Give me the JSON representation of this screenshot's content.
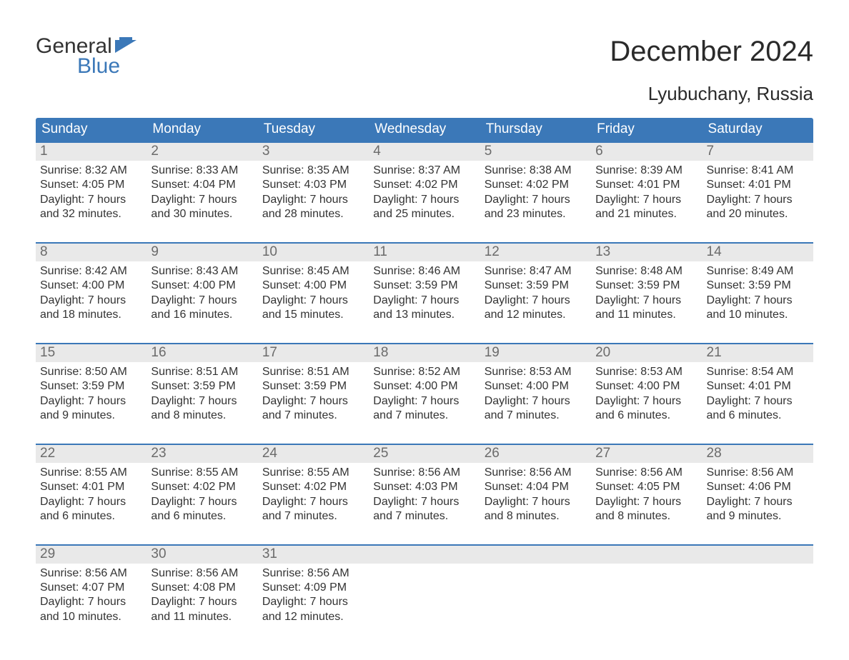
{
  "brand": {
    "word1": "General",
    "word2": "Blue",
    "flag_color": "#3b78b8",
    "text_color_dark": "#333333"
  },
  "title": "December 2024",
  "subtitle": "Lyubuchany, Russia",
  "colors": {
    "header_bg": "#3b78b8",
    "header_text": "#ffffff",
    "daynum_bg": "#e9e9e9",
    "daynum_text": "#6b6b6b",
    "body_text": "#333333",
    "week_divider": "#3b78b8",
    "page_bg": "#ffffff"
  },
  "days_of_week": [
    "Sunday",
    "Monday",
    "Tuesday",
    "Wednesday",
    "Thursday",
    "Friday",
    "Saturday"
  ],
  "weeks": [
    [
      {
        "n": "1",
        "sunrise": "Sunrise: 8:32 AM",
        "sunset": "Sunset: 4:05 PM",
        "d1": "Daylight: 7 hours",
        "d2": "and 32 minutes."
      },
      {
        "n": "2",
        "sunrise": "Sunrise: 8:33 AM",
        "sunset": "Sunset: 4:04 PM",
        "d1": "Daylight: 7 hours",
        "d2": "and 30 minutes."
      },
      {
        "n": "3",
        "sunrise": "Sunrise: 8:35 AM",
        "sunset": "Sunset: 4:03 PM",
        "d1": "Daylight: 7 hours",
        "d2": "and 28 minutes."
      },
      {
        "n": "4",
        "sunrise": "Sunrise: 8:37 AM",
        "sunset": "Sunset: 4:02 PM",
        "d1": "Daylight: 7 hours",
        "d2": "and 25 minutes."
      },
      {
        "n": "5",
        "sunrise": "Sunrise: 8:38 AM",
        "sunset": "Sunset: 4:02 PM",
        "d1": "Daylight: 7 hours",
        "d2": "and 23 minutes."
      },
      {
        "n": "6",
        "sunrise": "Sunrise: 8:39 AM",
        "sunset": "Sunset: 4:01 PM",
        "d1": "Daylight: 7 hours",
        "d2": "and 21 minutes."
      },
      {
        "n": "7",
        "sunrise": "Sunrise: 8:41 AM",
        "sunset": "Sunset: 4:01 PM",
        "d1": "Daylight: 7 hours",
        "d2": "and 20 minutes."
      }
    ],
    [
      {
        "n": "8",
        "sunrise": "Sunrise: 8:42 AM",
        "sunset": "Sunset: 4:00 PM",
        "d1": "Daylight: 7 hours",
        "d2": "and 18 minutes."
      },
      {
        "n": "9",
        "sunrise": "Sunrise: 8:43 AM",
        "sunset": "Sunset: 4:00 PM",
        "d1": "Daylight: 7 hours",
        "d2": "and 16 minutes."
      },
      {
        "n": "10",
        "sunrise": "Sunrise: 8:45 AM",
        "sunset": "Sunset: 4:00 PM",
        "d1": "Daylight: 7 hours",
        "d2": "and 15 minutes."
      },
      {
        "n": "11",
        "sunrise": "Sunrise: 8:46 AM",
        "sunset": "Sunset: 3:59 PM",
        "d1": "Daylight: 7 hours",
        "d2": "and 13 minutes."
      },
      {
        "n": "12",
        "sunrise": "Sunrise: 8:47 AM",
        "sunset": "Sunset: 3:59 PM",
        "d1": "Daylight: 7 hours",
        "d2": "and 12 minutes."
      },
      {
        "n": "13",
        "sunrise": "Sunrise: 8:48 AM",
        "sunset": "Sunset: 3:59 PM",
        "d1": "Daylight: 7 hours",
        "d2": "and 11 minutes."
      },
      {
        "n": "14",
        "sunrise": "Sunrise: 8:49 AM",
        "sunset": "Sunset: 3:59 PM",
        "d1": "Daylight: 7 hours",
        "d2": "and 10 minutes."
      }
    ],
    [
      {
        "n": "15",
        "sunrise": "Sunrise: 8:50 AM",
        "sunset": "Sunset: 3:59 PM",
        "d1": "Daylight: 7 hours",
        "d2": "and 9 minutes."
      },
      {
        "n": "16",
        "sunrise": "Sunrise: 8:51 AM",
        "sunset": "Sunset: 3:59 PM",
        "d1": "Daylight: 7 hours",
        "d2": "and 8 minutes."
      },
      {
        "n": "17",
        "sunrise": "Sunrise: 8:51 AM",
        "sunset": "Sunset: 3:59 PM",
        "d1": "Daylight: 7 hours",
        "d2": "and 7 minutes."
      },
      {
        "n": "18",
        "sunrise": "Sunrise: 8:52 AM",
        "sunset": "Sunset: 4:00 PM",
        "d1": "Daylight: 7 hours",
        "d2": "and 7 minutes."
      },
      {
        "n": "19",
        "sunrise": "Sunrise: 8:53 AM",
        "sunset": "Sunset: 4:00 PM",
        "d1": "Daylight: 7 hours",
        "d2": "and 7 minutes."
      },
      {
        "n": "20",
        "sunrise": "Sunrise: 8:53 AM",
        "sunset": "Sunset: 4:00 PM",
        "d1": "Daylight: 7 hours",
        "d2": "and 6 minutes."
      },
      {
        "n": "21",
        "sunrise": "Sunrise: 8:54 AM",
        "sunset": "Sunset: 4:01 PM",
        "d1": "Daylight: 7 hours",
        "d2": "and 6 minutes."
      }
    ],
    [
      {
        "n": "22",
        "sunrise": "Sunrise: 8:55 AM",
        "sunset": "Sunset: 4:01 PM",
        "d1": "Daylight: 7 hours",
        "d2": "and 6 minutes."
      },
      {
        "n": "23",
        "sunrise": "Sunrise: 8:55 AM",
        "sunset": "Sunset: 4:02 PM",
        "d1": "Daylight: 7 hours",
        "d2": "and 6 minutes."
      },
      {
        "n": "24",
        "sunrise": "Sunrise: 8:55 AM",
        "sunset": "Sunset: 4:02 PM",
        "d1": "Daylight: 7 hours",
        "d2": "and 7 minutes."
      },
      {
        "n": "25",
        "sunrise": "Sunrise: 8:56 AM",
        "sunset": "Sunset: 4:03 PM",
        "d1": "Daylight: 7 hours",
        "d2": "and 7 minutes."
      },
      {
        "n": "26",
        "sunrise": "Sunrise: 8:56 AM",
        "sunset": "Sunset: 4:04 PM",
        "d1": "Daylight: 7 hours",
        "d2": "and 8 minutes."
      },
      {
        "n": "27",
        "sunrise": "Sunrise: 8:56 AM",
        "sunset": "Sunset: 4:05 PM",
        "d1": "Daylight: 7 hours",
        "d2": "and 8 minutes."
      },
      {
        "n": "28",
        "sunrise": "Sunrise: 8:56 AM",
        "sunset": "Sunset: 4:06 PM",
        "d1": "Daylight: 7 hours",
        "d2": "and 9 minutes."
      }
    ],
    [
      {
        "n": "29",
        "sunrise": "Sunrise: 8:56 AM",
        "sunset": "Sunset: 4:07 PM",
        "d1": "Daylight: 7 hours",
        "d2": "and 10 minutes."
      },
      {
        "n": "30",
        "sunrise": "Sunrise: 8:56 AM",
        "sunset": "Sunset: 4:08 PM",
        "d1": "Daylight: 7 hours",
        "d2": "and 11 minutes."
      },
      {
        "n": "31",
        "sunrise": "Sunrise: 8:56 AM",
        "sunset": "Sunset: 4:09 PM",
        "d1": "Daylight: 7 hours",
        "d2": "and 12 minutes."
      },
      null,
      null,
      null,
      null
    ]
  ]
}
